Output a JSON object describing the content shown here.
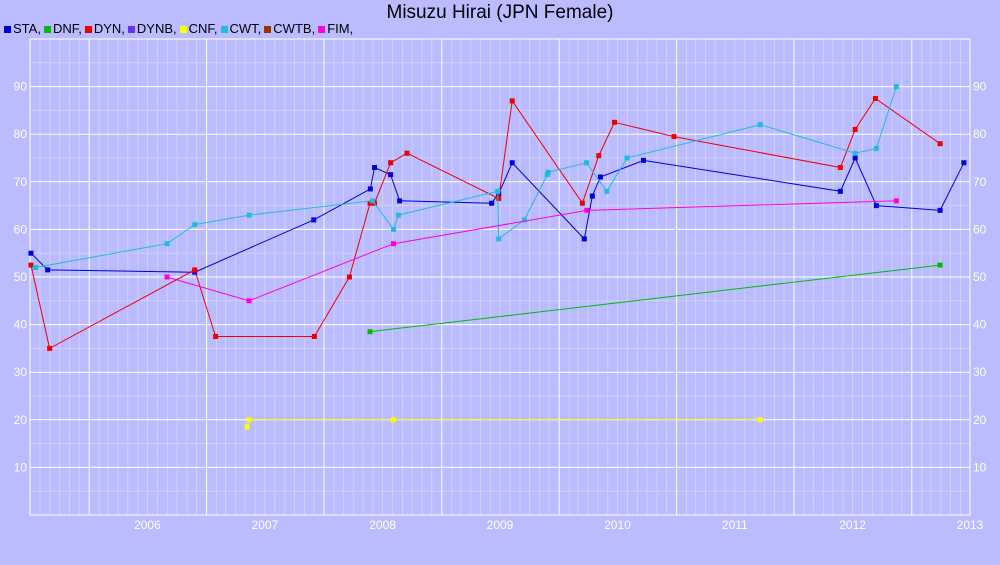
{
  "chart_data": {
    "type": "line",
    "title": "Misuzu Hirai (JPN Female)",
    "xlabel": "",
    "ylabel": "",
    "xlim": [
      "2005-07-01",
      "2013-07-01"
    ],
    "ylim": [
      0,
      100
    ],
    "x_ticks": [
      "2006",
      "2007",
      "2008",
      "2009",
      "2010",
      "2011",
      "2012",
      "2013"
    ],
    "y_ticks": [
      10,
      20,
      30,
      40,
      50,
      60,
      70,
      80,
      90
    ],
    "grid": true,
    "legend_position": "top-left",
    "series": [
      {
        "name": "STA",
        "color": "#0000dd",
        "points": [
          [
            "2005-07-04",
            55
          ],
          [
            "2005-08-25",
            51.5
          ],
          [
            "2006-11-25",
            51
          ],
          [
            "2007-11-30",
            62
          ],
          [
            "2008-05-24",
            68.5
          ],
          [
            "2008-06-06",
            73
          ],
          [
            "2008-07-26",
            71.5
          ],
          [
            "2008-08-23",
            66
          ],
          [
            "2009-06-05",
            65.5
          ],
          [
            "2009-06-27",
            67.5
          ],
          [
            "2009-08-08",
            74
          ],
          [
            "2010-03-20",
            58
          ],
          [
            "2010-04-14",
            67
          ],
          [
            "2010-05-09",
            71
          ],
          [
            "2010-09-20",
            74.5
          ],
          [
            "2012-05-24",
            68
          ],
          [
            "2012-07-09",
            75
          ],
          [
            "2012-09-13",
            65
          ],
          [
            "2013-03-30",
            64
          ],
          [
            "2013-06-12",
            74
          ]
        ]
      },
      {
        "name": "DNF",
        "color": "#00bb00",
        "points": [
          [
            "2008-05-23",
            38.5
          ],
          [
            "2013-03-30",
            52.5
          ]
        ]
      },
      {
        "name": "DYN",
        "color": "#ee0000",
        "points": [
          [
            "2005-07-04",
            52.5
          ],
          [
            "2005-08-31",
            35
          ],
          [
            "2006-11-25",
            51.5
          ],
          [
            "2007-01-29",
            37.5
          ],
          [
            "2007-12-02",
            37.5
          ],
          [
            "2008-03-20",
            50
          ],
          [
            "2008-05-23",
            65.5
          ],
          [
            "2008-06-06",
            65.5
          ],
          [
            "2008-07-26",
            74
          ],
          [
            "2008-09-15",
            76
          ],
          [
            "2009-06-27",
            66.5
          ],
          [
            "2009-08-08",
            87
          ],
          [
            "2010-03-14",
            65.5
          ],
          [
            "2010-05-04",
            75.5
          ],
          [
            "2010-06-22",
            82.5
          ],
          [
            "2010-12-24",
            79.5
          ],
          [
            "2012-05-24",
            73
          ],
          [
            "2012-07-09",
            81
          ],
          [
            "2012-09-10",
            87.5
          ],
          [
            "2013-03-30",
            78
          ]
        ]
      },
      {
        "name": "DYNB",
        "color": "#6633ee",
        "points": []
      },
      {
        "name": "CNF",
        "color": "#ffff00",
        "points": [
          [
            "2007-05-07",
            18.5
          ],
          [
            "2007-05-13",
            20
          ],
          [
            "2008-08-04",
            20
          ],
          [
            "2011-09-18",
            20
          ]
        ]
      },
      {
        "name": "CWT",
        "color": "#22bbdd",
        "points": [
          [
            "2005-07-18",
            52
          ],
          [
            "2006-08-31",
            57
          ],
          [
            "2006-11-25",
            61
          ],
          [
            "2007-05-13",
            63
          ],
          [
            "2008-05-31",
            66
          ],
          [
            "2008-08-04",
            60
          ],
          [
            "2008-08-19",
            63
          ],
          [
            "2009-06-24",
            68
          ],
          [
            "2009-06-27",
            58
          ],
          [
            "2009-09-15",
            62
          ],
          [
            "2009-11-25",
            71.5
          ],
          [
            "2009-11-28",
            72
          ],
          [
            "2010-03-27",
            74
          ],
          [
            "2010-05-29",
            68
          ],
          [
            "2010-07-31",
            75
          ],
          [
            "2011-09-18",
            82
          ],
          [
            "2012-07-09",
            76
          ],
          [
            "2012-09-13",
            77
          ],
          [
            "2012-11-14",
            90
          ]
        ]
      },
      {
        "name": "CWTB",
        "color": "#993300",
        "points": []
      },
      {
        "name": "FIM",
        "color": "#ff00dd",
        "points": [
          [
            "2006-08-31",
            50
          ],
          [
            "2007-05-13",
            45
          ],
          [
            "2008-08-04",
            57
          ],
          [
            "2010-03-28",
            64
          ],
          [
            "2012-11-14",
            66
          ]
        ]
      }
    ]
  }
}
